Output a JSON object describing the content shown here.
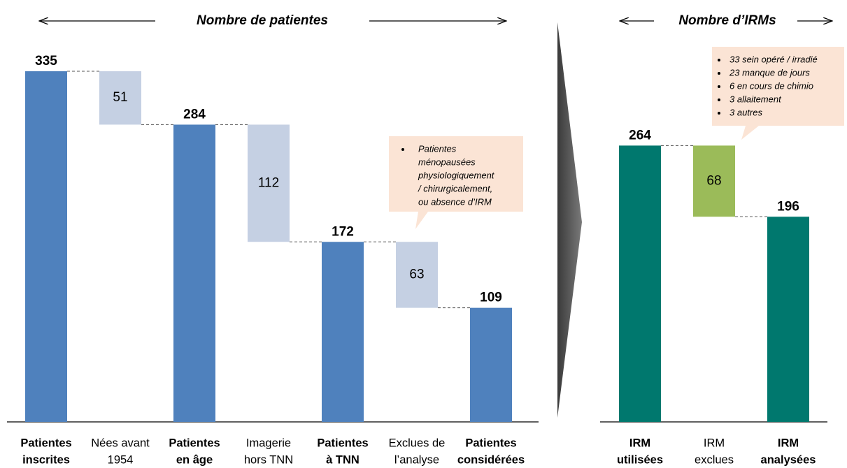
{
  "chart_data": [
    {
      "type": "waterfall",
      "title": "Nombre de patientes",
      "categories": [
        [
          "Patientes",
          "inscrites"
        ],
        [
          "Nées avant",
          "1954"
        ],
        [
          "Patientes",
          "en âge"
        ],
        [
          "Imagerie",
          "hors TNN"
        ],
        [
          "Patientes",
          "à TNN"
        ],
        [
          "Exclues de",
          "l’analyse"
        ],
        [
          "Patientes",
          "considérées"
        ]
      ],
      "values": [
        335,
        51,
        284,
        112,
        172,
        63,
        109
      ],
      "kinds": [
        "total",
        "decrease",
        "total",
        "decrease",
        "total",
        "decrease",
        "total"
      ],
      "colors": [
        "#4f81bd",
        "#c5d0e3",
        "#4f81bd",
        "#c5d0e3",
        "#4f81bd",
        "#c5d0e3",
        "#4f81bd"
      ],
      "ylim": [
        0,
        335
      ],
      "annotation": [
        "Patientes",
        "ménopausées",
        "physiologiquement",
        "/ chirurgicalement,",
        "ou absence d’IRM"
      ]
    },
    {
      "type": "waterfall",
      "title": "Nombre d’IRMs",
      "categories": [
        [
          "IRM",
          "utilisées"
        ],
        [
          "IRM",
          "exclues"
        ],
        [
          "IRM",
          "analysées"
        ]
      ],
      "values": [
        264,
        68,
        196
      ],
      "kinds": [
        "total",
        "decrease",
        "total"
      ],
      "colors": [
        "#00786e",
        "#9bbb59",
        "#00786e"
      ],
      "ylim": [
        0,
        335
      ],
      "annotation": [
        "33 sein opéré / irradié",
        "23 manque de jours",
        "6 en cours de chimio",
        "3 allaitement",
        "3 autres"
      ]
    }
  ]
}
